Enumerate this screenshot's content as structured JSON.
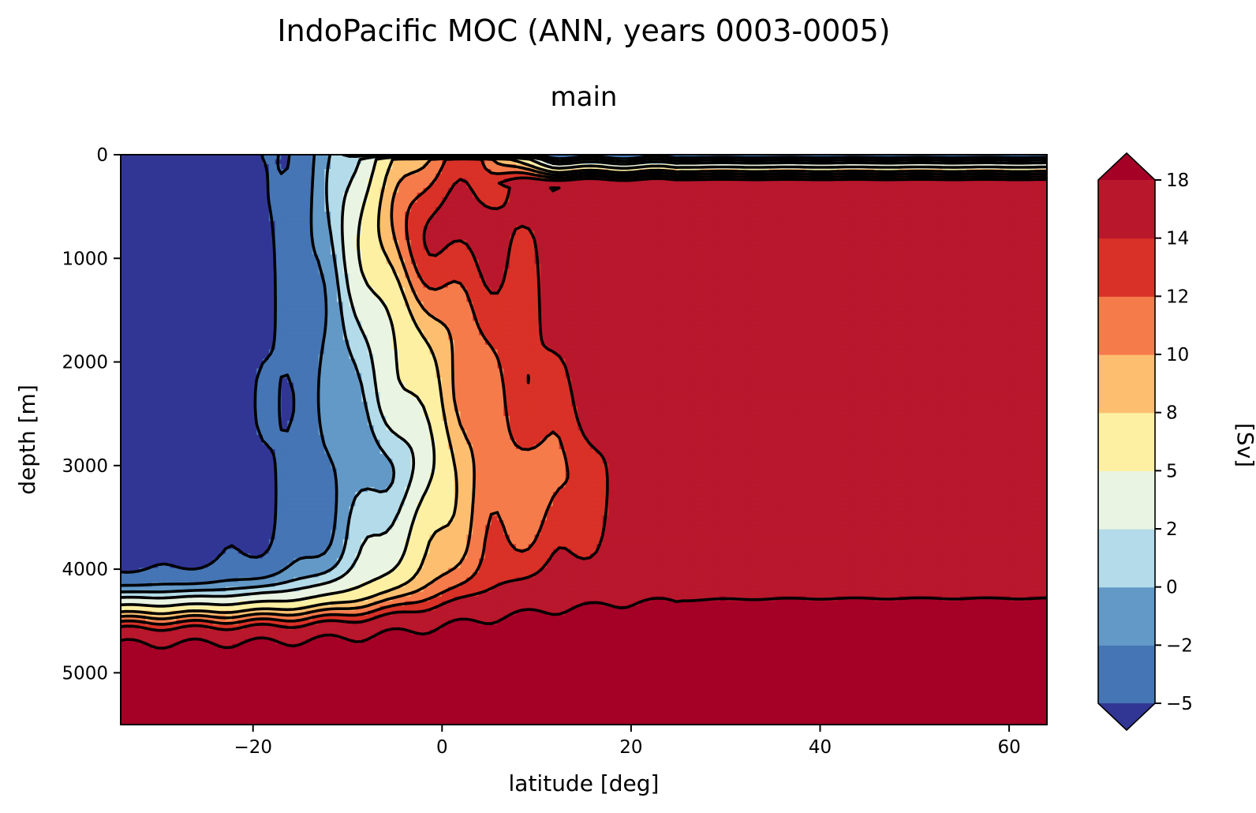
{
  "chart_data": {
    "type": "heatmap",
    "title": "IndoPacific MOC (ANN, years 0003-0005)",
    "subtitle": "main",
    "xlabel": "latitude [deg]",
    "ylabel": "depth [m]",
    "xlim": [
      -34,
      64
    ],
    "ylim": [
      5500,
      0
    ],
    "x_ticks": [
      -20,
      0,
      20,
      40,
      60
    ],
    "x_tick_labels": [
      "−20",
      "0",
      "20",
      "40",
      "60"
    ],
    "y_ticks": [
      0,
      1000,
      2000,
      3000,
      4000,
      5000
    ],
    "y_tick_labels": [
      "0",
      "1000",
      "2000",
      "3000",
      "4000",
      "5000"
    ],
    "colorbar": {
      "label": "[Sv]",
      "levels": [
        -5,
        -2,
        0,
        2,
        5,
        8,
        10,
        12,
        14,
        18
      ],
      "tick_labels": [
        "−5",
        "−2",
        "0",
        "2",
        "5",
        "8",
        "10",
        "12",
        "14",
        "18"
      ],
      "colors": [
        "#4575b4",
        "#6399c7",
        "#b3dbe9",
        "#eaf4e2",
        "#fdf0a3",
        "#fdbf6f",
        "#f67b4b",
        "#d93127",
        "#b8172c"
      ],
      "under_color": "#313695",
      "over_color": "#a50026",
      "extend": "both"
    },
    "colormap": "RdYlBu_r",
    "contour_lines": "black",
    "grid": false
  }
}
